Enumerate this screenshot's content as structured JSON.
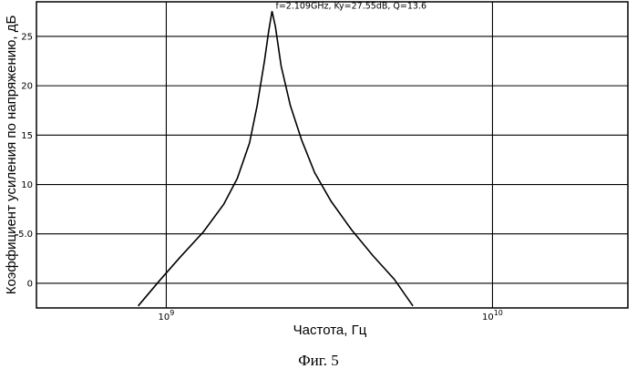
{
  "chart_data": {
    "type": "line",
    "xscale": "log",
    "xlim": [
      400000000,
      26000000000
    ],
    "ylim": [
      -2.5,
      28.5
    ],
    "grid": true,
    "xlabel": "Частота, Гц",
    "ylabel": "Коэффициент усиления по напряжению, дБ",
    "xticks": [
      {
        "value": 1000000000,
        "base": "10",
        "exp": "9"
      },
      {
        "value": 10000000000,
        "base": "10",
        "exp": "10"
      }
    ],
    "yticks": [
      {
        "value": 0,
        "label": "0"
      },
      {
        "value": 5,
        "label": "5.0"
      },
      {
        "value": 10,
        "label": "10"
      },
      {
        "value": 15,
        "label": "15"
      },
      {
        "value": 20,
        "label": "20"
      },
      {
        "value": 25,
        "label": "25"
      }
    ],
    "annotation": "f=2.109GHz, Ky=27.55dB, Q=13.6",
    "peak": {
      "x": 2109000000,
      "y": 27.55
    },
    "series": [
      {
        "x": [
          820000000,
          950000000,
          1100000000,
          1300000000,
          1500000000,
          1650000000,
          1800000000,
          1900000000,
          2000000000,
          2060000000,
          2109000000,
          2160000000,
          2250000000,
          2400000000,
          2600000000,
          2850000000,
          3200000000,
          3700000000,
          4300000000,
          5000000000,
          5700000000
        ],
        "y": [
          -2.3,
          0.2,
          2.6,
          5.2,
          8.0,
          10.6,
          14.2,
          18.0,
          22.5,
          25.5,
          27.55,
          26.0,
          22.0,
          18.0,
          14.5,
          11.2,
          8.3,
          5.4,
          2.8,
          0.4,
          -2.3
        ]
      }
    ]
  },
  "caption": "Фиг. 5"
}
